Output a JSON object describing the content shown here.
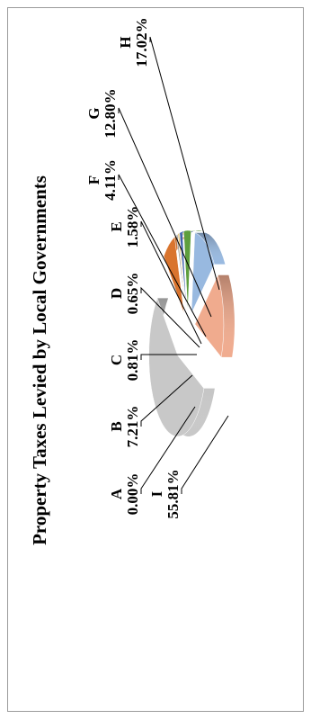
{
  "chart_data": {
    "type": "pie",
    "title": "Property Taxes Levied by Local Governments",
    "categories": [
      "A",
      "B",
      "C",
      "D",
      "E",
      "F",
      "G",
      "H",
      "I"
    ],
    "values": [
      0.0,
      7.21,
      0.81,
      0.65,
      1.58,
      4.11,
      12.8,
      17.02,
      55.81
    ],
    "value_labels": [
      "0.00%",
      "7.21%",
      "0.81%",
      "0.65%",
      "1.58%",
      "4.11%",
      "12.80%",
      "17.02%",
      "55.81%"
    ],
    "colors": [
      "#4f7ec4",
      "#d9742e",
      "#9a9a9a",
      "#e3b33a",
      "#3f62ad",
      "#5e9e3d",
      "#98b9e0",
      "#f0ab8e",
      "#c8c8c8"
    ],
    "style": "exploded 3D pie",
    "orientation": "rotated 90 degrees counter-clockwise",
    "legend": "none"
  }
}
